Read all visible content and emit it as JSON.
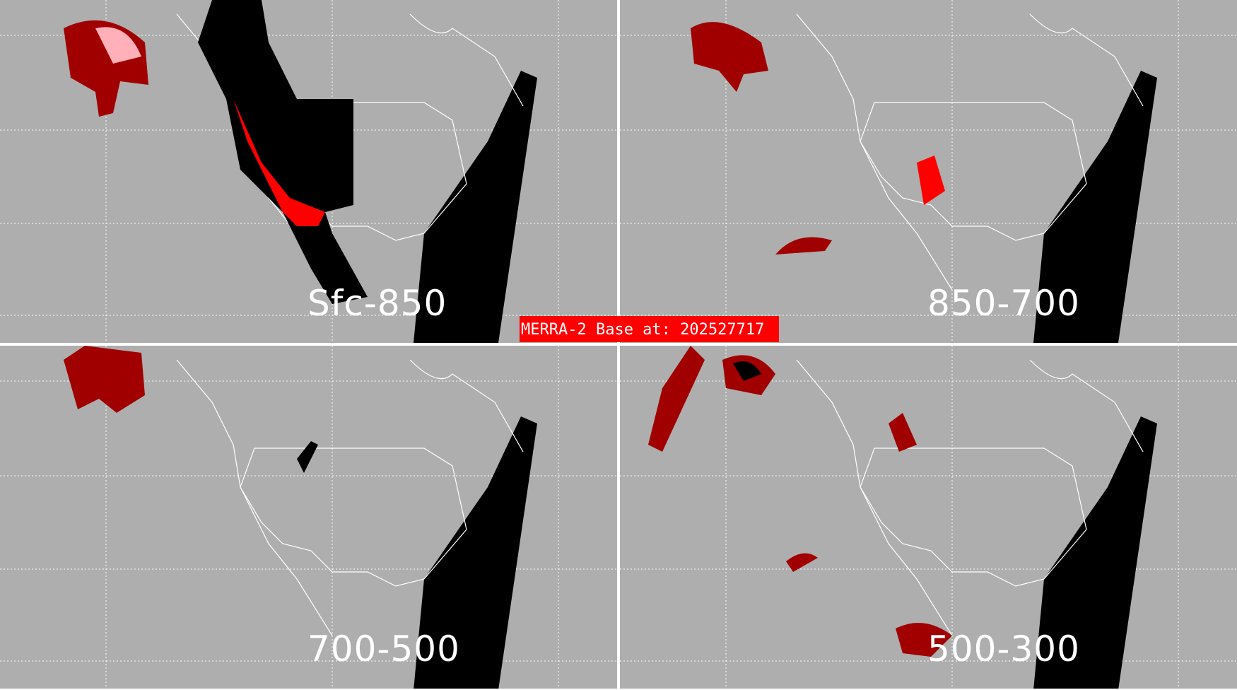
{
  "banner": "MERRA-2 Base at: 202527717",
  "panels": [
    {
      "label": "Sfc-850"
    },
    {
      "label": "850-700"
    },
    {
      "label": "700-500"
    },
    {
      "label": "500-300"
    }
  ],
  "colors": {
    "background": "#aeaeae",
    "dark_red": "#a00000",
    "red": "#ff0000",
    "pink": "#ffb0b8",
    "black": "#000000",
    "borders": "#ffffff"
  }
}
